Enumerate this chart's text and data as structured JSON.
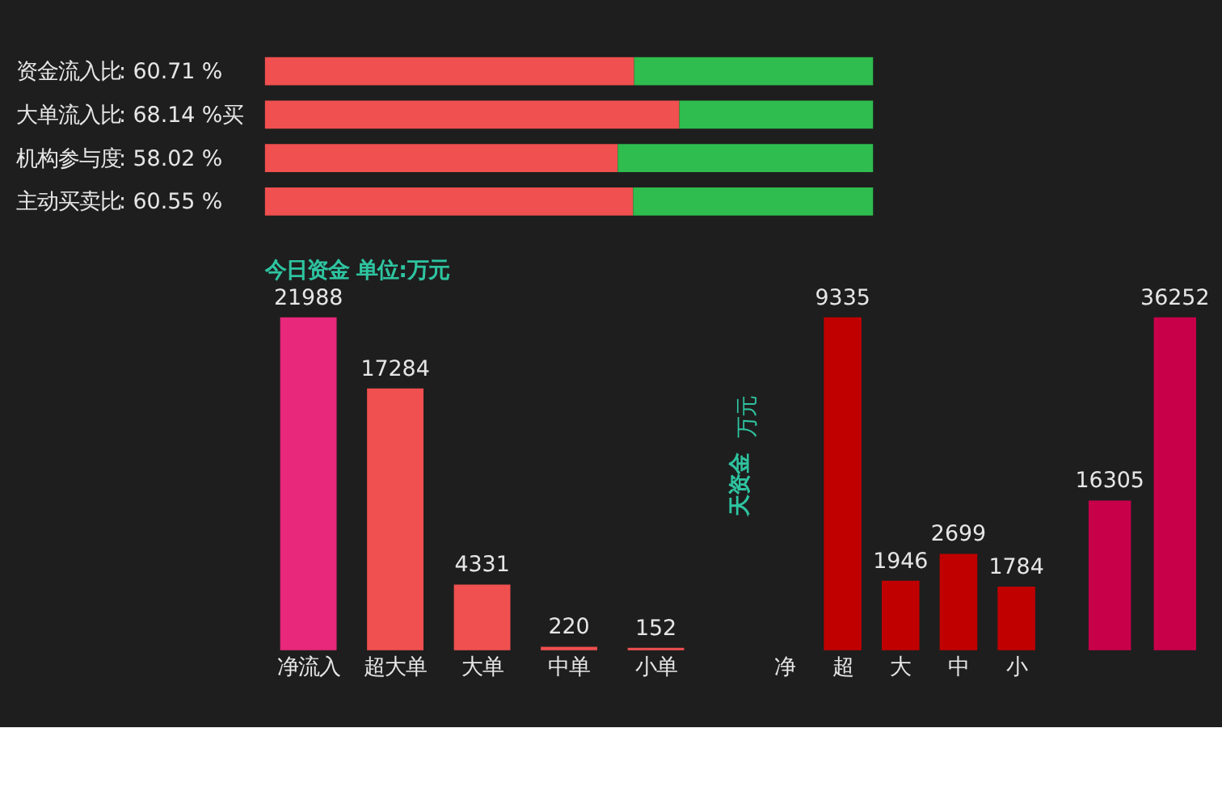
{
  "chart_data": [
    {
      "type": "bar",
      "orientation": "horizontal",
      "stacked": true,
      "xlim": [
        0,
        100
      ],
      "tick_labels": "y",
      "categories": [
        "资金流入比",
        "大单流入比",
        "机构参与度",
        "主动买卖比"
      ],
      "series": [
        {
          "color": "#f0504f",
          "values": [
            60.71,
            68.14,
            58.02,
            60.55
          ],
          "value_labels": [
            ":  60.71 %",
            ":  68.14 %买",
            ":  58.02 %",
            ":  60.55 %"
          ]
        },
        {
          "color": "#2ebd4e",
          "values": [
            39.29,
            31.86,
            41.98,
            39.45
          ]
        }
      ]
    },
    {
      "type": "bar",
      "title": "今日资金  单位:万元",
      "categories": [
        "净流入",
        "超大单",
        "大单",
        "中单",
        "小单"
      ],
      "values": [
        21988,
        17284,
        4331,
        220,
        152
      ],
      "colors": [
        "#e8287a",
        "#f0504f",
        "#f0504f",
        "#f0504f",
        "#f0504f"
      ],
      "data_labels": true,
      "tick_labels": "x"
    },
    {
      "type": "bar",
      "ylabel": "天资金",
      "annotations": [
        "万元"
      ],
      "categories": [
        "净",
        "超",
        "大",
        "中",
        "小"
      ],
      "values": [
        null,
        9335,
        1946,
        2699,
        1784
      ],
      "data_labels": true,
      "colors": [
        "#c8004a",
        "#c00000",
        "#c00000",
        "#c00000",
        "#c00000"
      ],
      "tick_labels": "x"
    },
    {
      "type": "bar",
      "categories": [
        null,
        null
      ],
      "values": [
        16305,
        36252
      ],
      "data_labels": true,
      "colors": [
        "#c8004a",
        "#c8004a"
      ],
      "tick_labels": false
    }
  ]
}
